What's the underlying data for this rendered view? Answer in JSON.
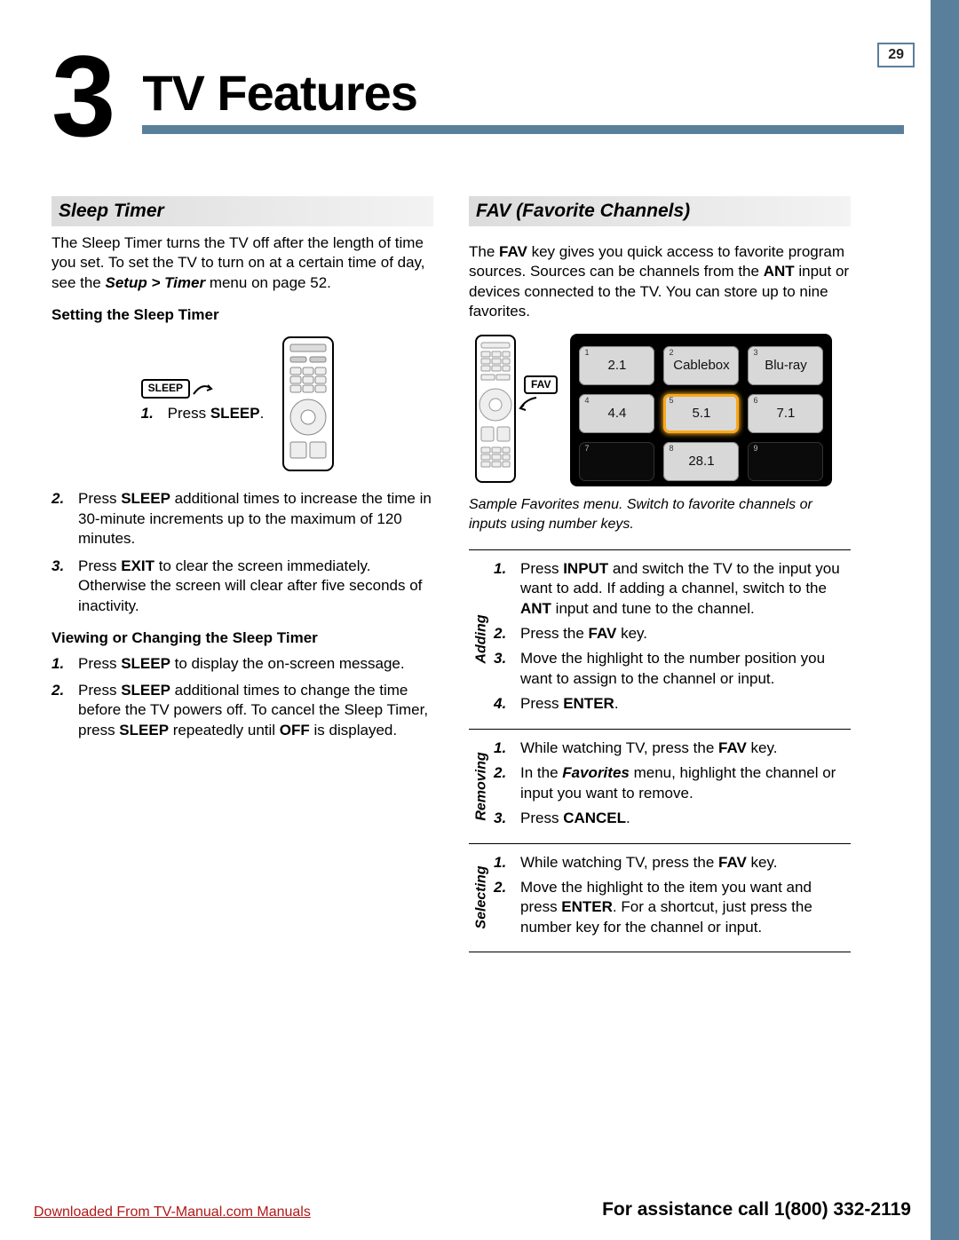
{
  "page_number": "29",
  "chapter_number": "3",
  "chapter_title": "TV Features",
  "left": {
    "heading": "Sleep Timer",
    "intro_pre": "The Sleep Timer turns the TV off after the length of time you set.  To set the TV to turn on at a certain time of day, see the ",
    "intro_bold": "Setup > Timer",
    "intro_post": " menu on page 52.",
    "sub1": "Setting the Sleep Timer",
    "remote_key": "SLEEP",
    "step1_pre": "Press ",
    "step1_bold": "SLEEP",
    "step1_post": ".",
    "step2_pre": "Press ",
    "step2_bold": "SLEEP",
    "step2_post": " additional times to increase the time in 30-minute increments up to the maximum of 120 minutes.",
    "step3_pre": "Press ",
    "step3_bold": "EXIT",
    "step3_post": " to clear the screen immediately.  Otherwise the screen will clear after five seconds of inactivity.",
    "sub2": "Viewing or Changing the Sleep Timer",
    "v_step1_pre": "Press ",
    "v_step1_bold": "SLEEP",
    "v_step1_post": " to display the on-screen message.",
    "v_step2_pre": "Press ",
    "v_step2_bold1": "SLEEP",
    "v_step2_mid": " additional times to change the time before the TV powers off.  To cancel the Sleep Timer, press ",
    "v_step2_bold2": "SLEEP",
    "v_step2_mid2": " repeatedly until ",
    "v_step2_bold3": "OFF",
    "v_step2_post": " is displayed."
  },
  "right": {
    "heading": "FAV (Favorite Channels)",
    "intro_p1": "The ",
    "intro_b1": "FAV",
    "intro_p2": " key gives you quick access to favorite program sources.  Sources can be channels from the ",
    "intro_b2": "ANT",
    "intro_p3": " input or devices connected to the TV.  You can store up to nine favorites.",
    "fav_key": "FAV",
    "cells": [
      {
        "n": "1",
        "v": "2.1"
      },
      {
        "n": "2",
        "v": "Cablebox"
      },
      {
        "n": "3",
        "v": "Blu-ray"
      },
      {
        "n": "4",
        "v": "4.4"
      },
      {
        "n": "5",
        "v": "5.1",
        "hl": true
      },
      {
        "n": "6",
        "v": "7.1"
      },
      {
        "n": "7",
        "v": "",
        "empty": true
      },
      {
        "n": "8",
        "v": "28.1"
      },
      {
        "n": "9",
        "v": "",
        "empty": true
      }
    ],
    "caption": "Sample Favorites menu.  Switch to favorite channels or inputs using number keys.",
    "tasks": [
      {
        "label": "Adding",
        "steps": [
          {
            "pre": "Press ",
            "b": "INPUT",
            "mid": " and switch the TV to the input you want to add.  If adding a channel, switch to the ",
            "b2": "ANT",
            "post": " input and tune to the channel."
          },
          {
            "pre": "Press the ",
            "b": "FAV",
            "post": " key."
          },
          {
            "pre": "Move the highlight to the number position you want to assign to the channel or input."
          },
          {
            "pre": "Press ",
            "b": "ENTER",
            "post": "."
          }
        ]
      },
      {
        "label": "Removing",
        "steps": [
          {
            "pre": "While watching TV, press the ",
            "b": "FAV",
            "post": " key."
          },
          {
            "pre": "In the ",
            "bi": "Favorites",
            "post": " menu, highlight the channel or input you want to remove."
          },
          {
            "pre": "Press ",
            "b": "CANCEL",
            "post": "."
          }
        ]
      },
      {
        "label": "Selecting",
        "steps": [
          {
            "pre": "While watching TV, press the ",
            "b": "FAV",
            "post": " key."
          },
          {
            "pre": "Move the highlight to the item you want and press ",
            "b": "ENTER",
            "post": ".  For a shortcut, just press the number key for the channel or input."
          }
        ]
      }
    ]
  },
  "footer_left": "Downloaded From TV-Manual.com Manuals",
  "footer_right": "For assistance call 1(800) 332-2119",
  "colors": {
    "accent": "#5a7f9a",
    "highlight": "#f9a81b",
    "link": "#b01818"
  }
}
